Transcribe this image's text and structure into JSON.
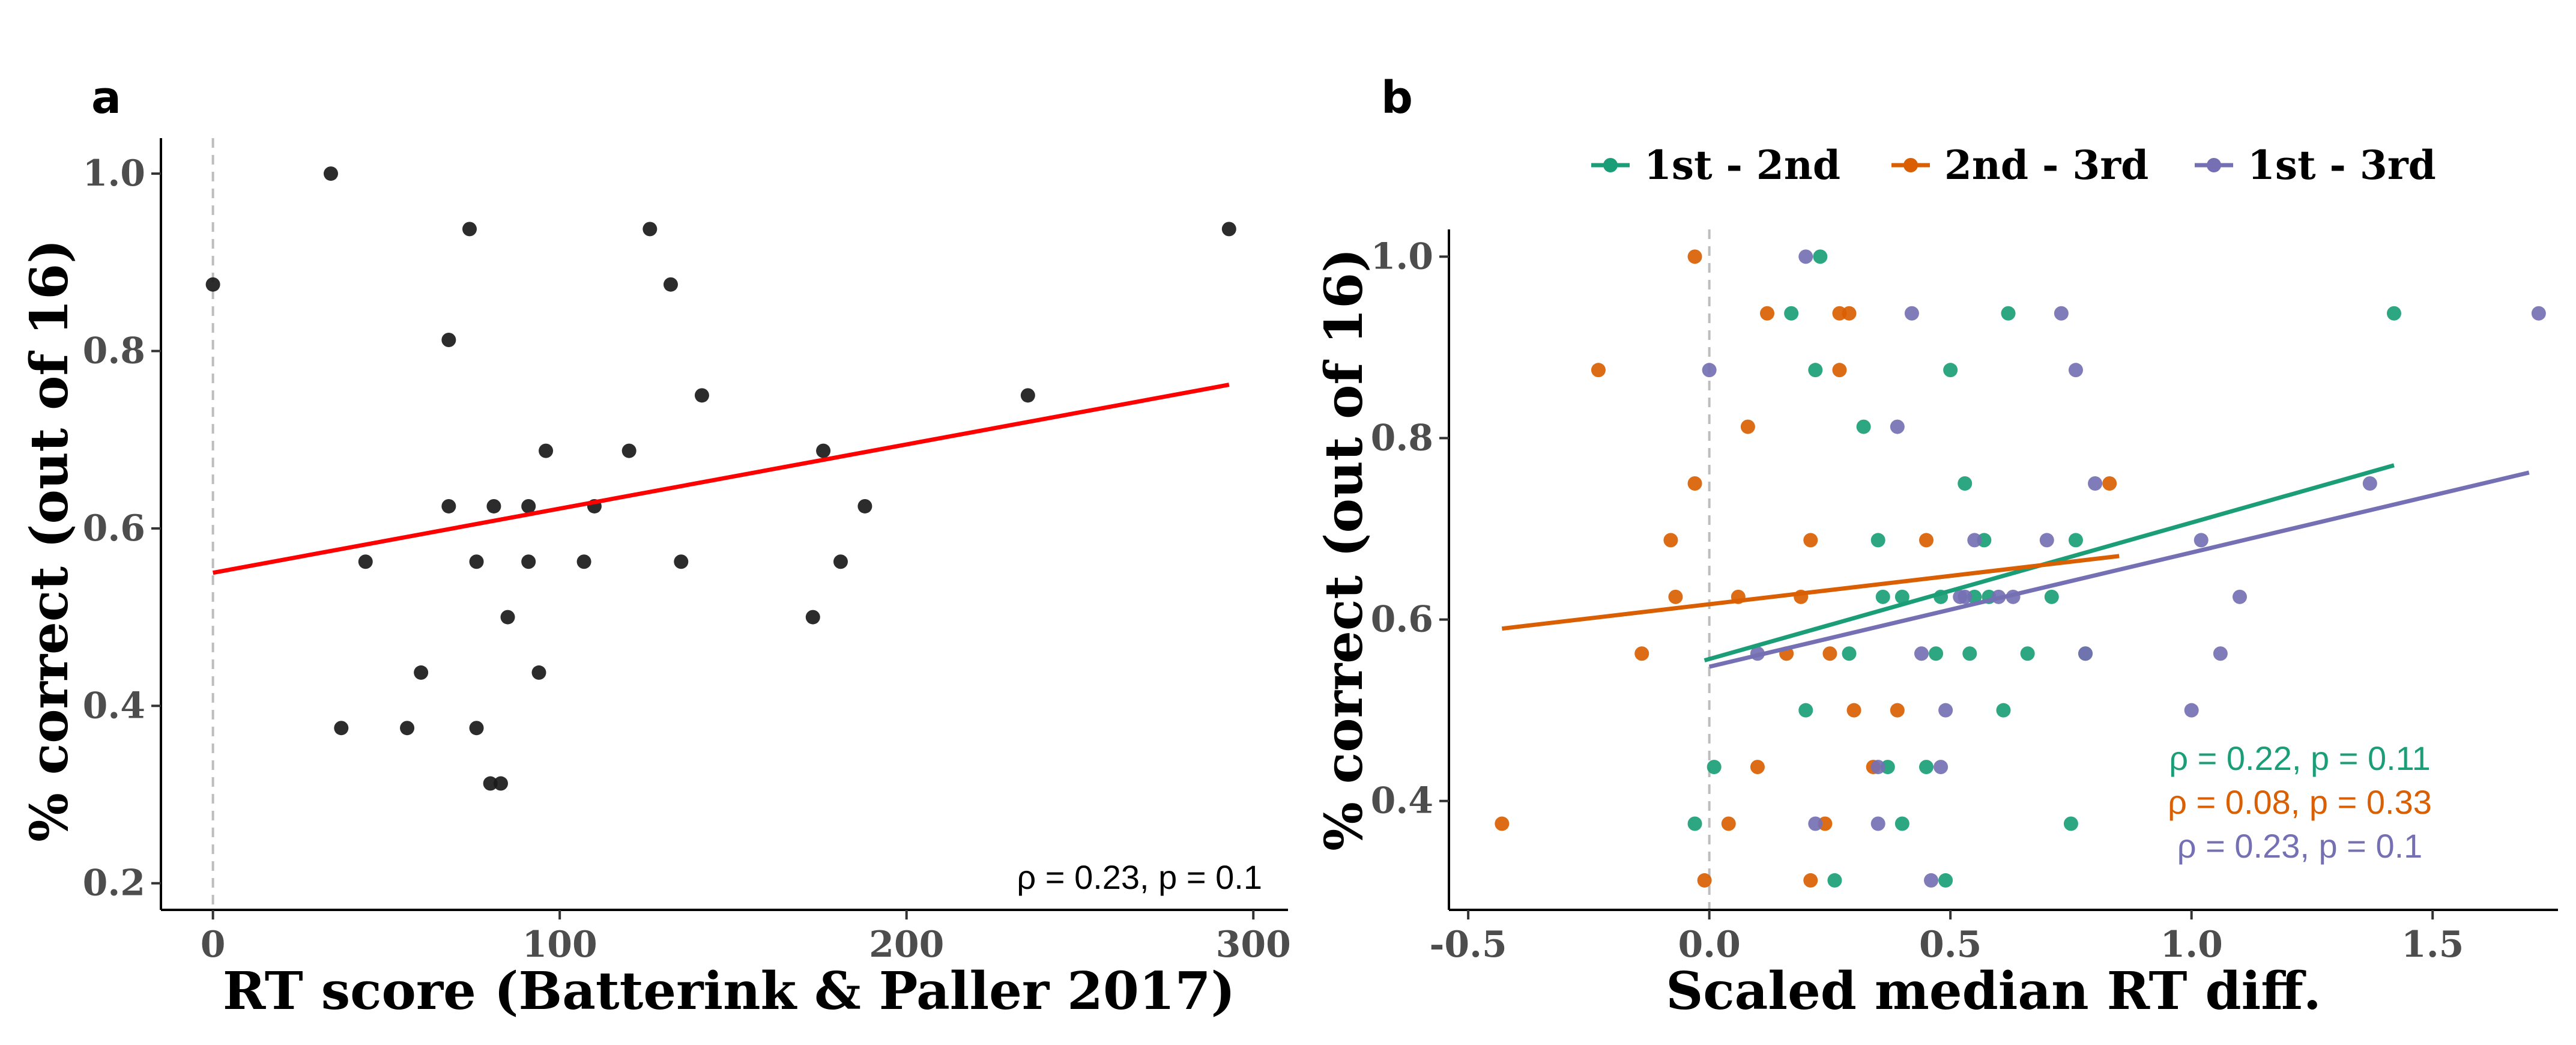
{
  "chart_data": [
    {
      "panel": "a",
      "type": "scatter",
      "xlabel": "RT score (Batterink & Paller 2017)",
      "ylabel": "% correct (out of 16)",
      "xlim": [
        -15,
        310
      ],
      "ylim": [
        0.17,
        1.04
      ],
      "xticks": [
        0,
        100,
        200,
        300
      ],
      "yticks": [
        0.2,
        0.4,
        0.6,
        0.8,
        1.0
      ],
      "reference_line_x": 0,
      "grid": false,
      "point_color": "#1a1a1a",
      "line_color": "#ff0000",
      "points": [
        {
          "x": 0,
          "y": 0.875
        },
        {
          "x": 34,
          "y": 1.0
        },
        {
          "x": 37,
          "y": 0.375
        },
        {
          "x": 44,
          "y": 0.5625
        },
        {
          "x": 56,
          "y": 0.375
        },
        {
          "x": 60,
          "y": 0.4375
        },
        {
          "x": 68,
          "y": 0.8125
        },
        {
          "x": 68,
          "y": 0.625
        },
        {
          "x": 74,
          "y": 0.9375
        },
        {
          "x": 76,
          "y": 0.5625
        },
        {
          "x": 76,
          "y": 0.375
        },
        {
          "x": 80,
          "y": 0.3125
        },
        {
          "x": 81,
          "y": 0.625
        },
        {
          "x": 83,
          "y": 0.3125
        },
        {
          "x": 85,
          "y": 0.5
        },
        {
          "x": 91,
          "y": 0.5625
        },
        {
          "x": 91,
          "y": 0.625
        },
        {
          "x": 94,
          "y": 0.4375
        },
        {
          "x": 96,
          "y": 0.6875
        },
        {
          "x": 107,
          "y": 0.5625
        },
        {
          "x": 110,
          "y": 0.625
        },
        {
          "x": 120,
          "y": 0.6875
        },
        {
          "x": 126,
          "y": 0.9375
        },
        {
          "x": 132,
          "y": 0.875
        },
        {
          "x": 135,
          "y": 0.5625
        },
        {
          "x": 141,
          "y": 0.75
        },
        {
          "x": 173,
          "y": 0.5
        },
        {
          "x": 176,
          "y": 0.6875
        },
        {
          "x": 181,
          "y": 0.5625
        },
        {
          "x": 188,
          "y": 0.625
        },
        {
          "x": 235,
          "y": 0.75
        },
        {
          "x": 293,
          "y": 0.9375
        }
      ],
      "fit_line": {
        "x": [
          0,
          293
        ],
        "y": [
          0.55,
          0.762
        ]
      },
      "annotation": "ρ = 0.23, p = 0.1"
    },
    {
      "panel": "b",
      "type": "scatter",
      "xlabel": "Scaled median RT diff.",
      "ylabel": "% correct (out of 16)",
      "xlim": [
        -0.54,
        1.76
      ],
      "ylim": [
        0.28,
        1.03
      ],
      "xticks": [
        -0.5,
        0.0,
        0.5,
        1.0,
        1.5
      ],
      "yticks": [
        0.4,
        0.6,
        0.8,
        1.0
      ],
      "reference_line_x": 0,
      "grid": false,
      "legend_position": "top",
      "series": [
        {
          "name": "1st - 2nd",
          "color": "#1b9e77",
          "points": [
            {
              "x": -0.03,
              "y": 0.375
            },
            {
              "x": 0.01,
              "y": 0.4375
            },
            {
              "x": 0.17,
              "y": 0.9375
            },
            {
              "x": 0.2,
              "y": 0.5
            },
            {
              "x": 0.22,
              "y": 0.875
            },
            {
              "x": 0.23,
              "y": 1.0
            },
            {
              "x": 0.26,
              "y": 0.3125
            },
            {
              "x": 0.29,
              "y": 0.5625
            },
            {
              "x": 0.32,
              "y": 0.8125
            },
            {
              "x": 0.35,
              "y": 0.6875
            },
            {
              "x": 0.36,
              "y": 0.625
            },
            {
              "x": 0.37,
              "y": 0.4375
            },
            {
              "x": 0.4,
              "y": 0.375
            },
            {
              "x": 0.4,
              "y": 0.625
            },
            {
              "x": 0.45,
              "y": 0.4375
            },
            {
              "x": 0.47,
              "y": 0.5625
            },
            {
              "x": 0.48,
              "y": 0.625
            },
            {
              "x": 0.49,
              "y": 0.3125
            },
            {
              "x": 0.5,
              "y": 0.875
            },
            {
              "x": 0.53,
              "y": 0.75
            },
            {
              "x": 0.54,
              "y": 0.5625
            },
            {
              "x": 0.55,
              "y": 0.625
            },
            {
              "x": 0.57,
              "y": 0.6875
            },
            {
              "x": 0.58,
              "y": 0.625
            },
            {
              "x": 0.62,
              "y": 0.9375
            },
            {
              "x": 0.61,
              "y": 0.5
            },
            {
              "x": 0.66,
              "y": 0.5625
            },
            {
              "x": 0.71,
              "y": 0.625
            },
            {
              "x": 0.76,
              "y": 0.6875
            },
            {
              "x": 0.75,
              "y": 0.375
            },
            {
              "x": 0.78,
              "y": 0.5625
            },
            {
              "x": 1.42,
              "y": 0.9375
            }
          ],
          "fit_line": {
            "x": [
              -0.01,
              1.42
            ],
            "y": [
              0.555,
              0.77
            ]
          }
        },
        {
          "name": "2nd - 3rd",
          "color": "#d95f02",
          "points": [
            {
              "x": -0.43,
              "y": 0.375
            },
            {
              "x": -0.23,
              "y": 0.875
            },
            {
              "x": -0.14,
              "y": 0.5625
            },
            {
              "x": -0.08,
              "y": 0.6875
            },
            {
              "x": -0.07,
              "y": 0.625
            },
            {
              "x": -0.03,
              "y": 1.0
            },
            {
              "x": -0.03,
              "y": 0.75
            },
            {
              "x": -0.01,
              "y": 0.3125
            },
            {
              "x": 0.04,
              "y": 0.375
            },
            {
              "x": 0.06,
              "y": 0.625
            },
            {
              "x": 0.08,
              "y": 0.8125
            },
            {
              "x": 0.1,
              "y": 0.4375
            },
            {
              "x": 0.12,
              "y": 0.9375
            },
            {
              "x": 0.16,
              "y": 0.5625
            },
            {
              "x": 0.19,
              "y": 0.625
            },
            {
              "x": 0.21,
              "y": 0.3125
            },
            {
              "x": 0.21,
              "y": 0.6875
            },
            {
              "x": 0.24,
              "y": 0.375
            },
            {
              "x": 0.25,
              "y": 0.5625
            },
            {
              "x": 0.27,
              "y": 0.875
            },
            {
              "x": 0.27,
              "y": 0.9375
            },
            {
              "x": 0.29,
              "y": 0.9375
            },
            {
              "x": 0.3,
              "y": 0.5
            },
            {
              "x": 0.34,
              "y": 0.4375
            },
            {
              "x": 0.39,
              "y": 0.5
            },
            {
              "x": 0.45,
              "y": 0.6875
            },
            {
              "x": 0.83,
              "y": 0.75
            }
          ],
          "fit_line": {
            "x": [
              -0.43,
              0.85
            ],
            "y": [
              0.59,
              0.67
            ]
          }
        },
        {
          "name": "1st - 3rd",
          "color": "#7570b3",
          "points": [
            {
              "x": 0.0,
              "y": 0.875
            },
            {
              "x": 0.1,
              "y": 0.5625
            },
            {
              "x": 0.2,
              "y": 1.0
            },
            {
              "x": 0.22,
              "y": 0.375
            },
            {
              "x": 0.35,
              "y": 0.4375
            },
            {
              "x": 0.35,
              "y": 0.375
            },
            {
              "x": 0.39,
              "y": 0.8125
            },
            {
              "x": 0.42,
              "y": 0.9375
            },
            {
              "x": 0.44,
              "y": 0.5625
            },
            {
              "x": 0.46,
              "y": 0.3125
            },
            {
              "x": 0.48,
              "y": 0.4375
            },
            {
              "x": 0.49,
              "y": 0.5
            },
            {
              "x": 0.52,
              "y": 0.625
            },
            {
              "x": 0.53,
              "y": 0.625
            },
            {
              "x": 0.55,
              "y": 0.6875
            },
            {
              "x": 0.6,
              "y": 0.625
            },
            {
              "x": 0.63,
              "y": 0.625
            },
            {
              "x": 0.7,
              "y": 0.6875
            },
            {
              "x": 0.73,
              "y": 0.9375
            },
            {
              "x": 0.76,
              "y": 0.875
            },
            {
              "x": 0.78,
              "y": 0.5625
            },
            {
              "x": 0.8,
              "y": 0.75
            },
            {
              "x": 1.02,
              "y": 0.6875
            },
            {
              "x": 1.0,
              "y": 0.5
            },
            {
              "x": 1.06,
              "y": 0.5625
            },
            {
              "x": 1.1,
              "y": 0.625
            },
            {
              "x": 1.37,
              "y": 0.75
            },
            {
              "x": 1.72,
              "y": 0.9375
            }
          ],
          "fit_line": {
            "x": [
              0.0,
              1.7
            ],
            "y": [
              0.548,
              0.762
            ]
          }
        }
      ],
      "annotations": [
        {
          "text": "ρ = 0.22, p = 0.11",
          "color": "#1b9e77"
        },
        {
          "text": "ρ = 0.08, p = 0.33",
          "color": "#d95f02"
        },
        {
          "text": "ρ = 0.23, p = 0.1",
          "color": "#7570b3"
        }
      ]
    }
  ],
  "panels": {
    "a": {
      "letter": "a"
    },
    "b": {
      "letter": "b"
    }
  }
}
